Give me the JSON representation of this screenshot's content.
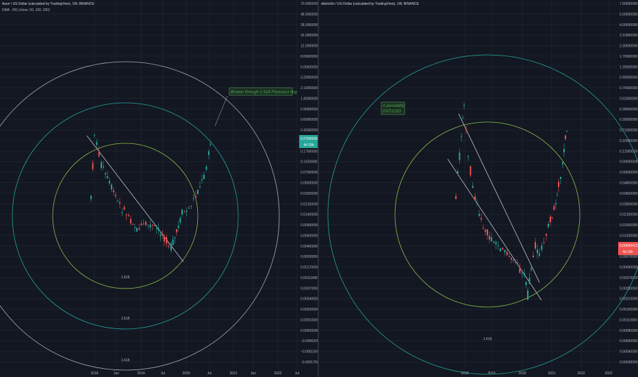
{
  "colors": {
    "background": "#131722",
    "grid": "#1e222d",
    "up": "#26a69a",
    "down": "#ef5350",
    "ring_outer": "#d1d4dc",
    "ring_middle": "#26a69a",
    "ring_inner": "#8bc34a",
    "trendline": "#b2b5be",
    "annotation": "#4caf50",
    "price_label_left": "#26a69a",
    "price_label_right": "#ef5350"
  },
  "left": {
    "title": "Aave / US Dollar (calculated by TradingView), 1W, BINANCE",
    "indicator": "DMA - RG (close, 50, 100, 200)",
    "annotation": "Broken through 2.618 Fibonacci ring",
    "ring_labels": [
      "1.618",
      "1.618",
      "1.618"
    ],
    "price_tag": "0.27000000",
    "price_tag_sub": "4d 18h",
    "x_ticks": [
      "2018",
      "Jun",
      "2019",
      "Jul",
      "2020",
      "Jul",
      "2021",
      "Jun",
      "2022",
      "Jul"
    ],
    "y_ticks": [
      "70.00000000",
      "48.00000000",
      "28.00000000",
      "16.00000000",
      "12.00000000",
      "8.00000000",
      "5.00000000",
      "3.20000000",
      "2.10000000",
      "1.40000000",
      "0.90000000",
      "0.60000000",
      "0.40000000",
      "0.27000000",
      "0.17000000",
      "0.11500000",
      "0.07500000",
      "0.05000000",
      "0.03200000",
      "0.02100000",
      "0.01400000",
      "0.00900000",
      "0.00600000",
      "0.00400000",
      "0.00260000",
      "0.00170000",
      "0.00110000",
      "0.00070000",
      "0.00040000",
      "0.00020000",
      "0.00010000",
      "0.00000000",
      "−0.00002000",
      "−0.00010000",
      "−0.00017000"
    ]
  },
  "right": {
    "title": "district0x / US Dollar (calculated by TradingView), 1W, BINANCE",
    "annotation_line1": "A possibility",
    "annotation_line2": "DNT/USD",
    "ring_labels": [
      "1.618"
    ],
    "price_tag": "0.00849412",
    "price_tag_sub": "4d 18h",
    "x_ticks": [
      "2018",
      "2019",
      "2020",
      "2021",
      "2022",
      "2023"
    ],
    "y_ticks": [
      "7.50000000",
      "5.50000000",
      "4.00000000",
      "3.10000000",
      "2.30000000",
      "1.70000000",
      "1.25000000",
      "0.95000000",
      "0.70000000",
      "0.52000000",
      "0.38000000",
      "0.28000000",
      "0.21000000",
      "0.16000000",
      "0.12000000",
      "0.09000000",
      "0.06500000",
      "0.04800000",
      "0.03600000",
      "0.02800000",
      "0.02100000",
      "0.01600000",
      "0.01200000",
      "0.00900000",
      "0.00670000",
      "0.00490000",
      "0.00370000",
      "0.00280000",
      "0.00210000",
      "0.00150000",
      "0.00110000",
      "0.00080000",
      "0.00060000",
      "0.00040000",
      "0.00028000"
    ]
  },
  "chart_data": [
    {
      "type": "candlestick",
      "title": "Aave / US Dollar (calculated by TradingView), 1W, BINANCE",
      "x": [
        "2018",
        "Jun",
        "2019",
        "Jul",
        "2020",
        "Jul",
        "2021"
      ],
      "series": [
        {
          "name": "DMA - RG (close, 50, 100, 200)",
          "values": [
            0.35,
            0.09,
            0.0085,
            0.0045,
            0.0085,
            0.06,
            0.33
          ]
        }
      ],
      "ylog": true
    },
    {
      "type": "line",
      "title": "district0x / US Dollar (calculated by TradingView), 1W, BINANCE",
      "x": [
        "2018",
        "2019",
        "2020",
        "2021"
      ],
      "series": [
        {
          "name": "",
          "values": [
            0.2,
            0.013,
            0.003,
            0.028
          ]
        }
      ],
      "ylog": true
    }
  ]
}
